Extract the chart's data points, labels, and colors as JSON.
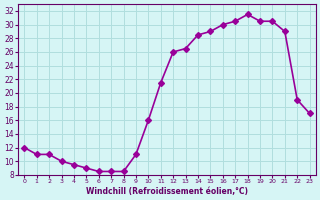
{
  "x": [
    0,
    1,
    2,
    3,
    4,
    5,
    6,
    7,
    8,
    9,
    10,
    11,
    12,
    13,
    14,
    15,
    16,
    17,
    18,
    19,
    20,
    21,
    22,
    23
  ],
  "y": [
    12,
    11,
    11,
    10,
    9.5,
    9,
    8.5,
    8.5,
    8.5,
    11,
    16,
    21.5,
    26,
    26.5,
    28.5,
    29,
    30,
    30.5,
    31.5,
    30.5,
    30.5,
    29,
    19,
    17
  ],
  "line_color": "#990099",
  "marker": "D",
  "marker_size": 3,
  "bg_color": "#d6f5f5",
  "grid_color": "#b0dede",
  "xlabel": "Windchill (Refroidissement éolien,°C)",
  "xlabel_color": "#660066",
  "tick_color": "#660066",
  "ylim": [
    8,
    33
  ],
  "xlim": [
    -0.5,
    23.5
  ],
  "yticks": [
    8,
    10,
    12,
    14,
    16,
    18,
    20,
    22,
    24,
    26,
    28,
    30,
    32
  ],
  "xticks": [
    0,
    1,
    2,
    3,
    4,
    5,
    6,
    7,
    8,
    9,
    10,
    11,
    12,
    13,
    14,
    15,
    16,
    17,
    18,
    19,
    20,
    21,
    22,
    23
  ],
  "spine_color": "#660066",
  "linewidth": 1.2
}
